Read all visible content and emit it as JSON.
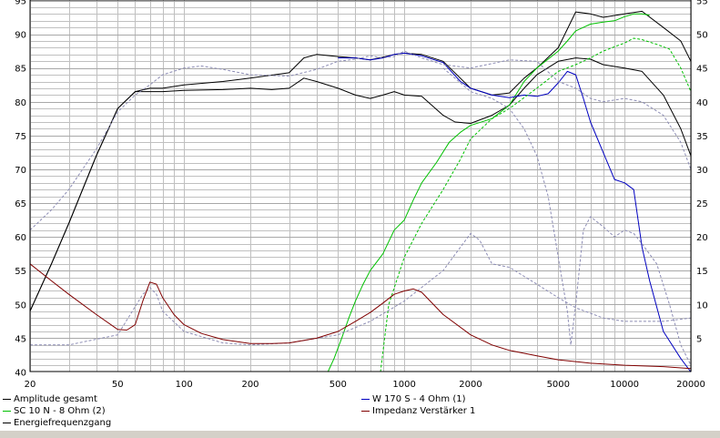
{
  "chart_data": {
    "type": "line",
    "x_scale": "log",
    "xlim": [
      20,
      20000
    ],
    "x_ticks": [
      20,
      50,
      100,
      200,
      500,
      1000,
      2000,
      5000,
      10000,
      20000
    ],
    "x_tick_labels": [
      "20",
      "50",
      "100",
      "200",
      "500",
      "1000",
      "2000",
      "5000",
      "10000",
      "20000"
    ],
    "ylim_left": [
      40,
      95
    ],
    "y_ticks_left": [
      40,
      45,
      50,
      55,
      60,
      65,
      70,
      75,
      80,
      85,
      90,
      95
    ],
    "ylim_right": [
      0,
      55
    ],
    "y_ticks_right": [
      5,
      10,
      15,
      20,
      25,
      30,
      35,
      40,
      45,
      50,
      55
    ],
    "grid": true,
    "legend_position": "bottom",
    "colors": {
      "amplitude": "#000000",
      "sc10n": "#00c000",
      "w170s": "#0000c0",
      "impedance": "#800000",
      "dashed": "#8c8cb4",
      "grid": "#c0c0c0"
    },
    "legend": [
      {
        "key": "amplitude",
        "label": "Amplitude gesamt",
        "color": "#000000"
      },
      {
        "key": "sc10n",
        "label": "SC 10 N - 8 Ohm (2)",
        "color": "#00c000"
      },
      {
        "key": "energy",
        "label": "Energiefrequenzgang",
        "color": "#000000"
      },
      {
        "key": "w170s",
        "label": "W 170 S - 4 Ohm (1)",
        "color": "#0000c0"
      },
      {
        "key": "impedance",
        "label": "Impedanz Verstärker 1",
        "color": "#800000"
      }
    ],
    "series": [
      {
        "key": "amplitude_upper",
        "legend_key": "amplitude",
        "color": "#000000",
        "style": "solid",
        "x": [
          20,
          25,
          30,
          40,
          50,
          60,
          70,
          80,
          100,
          150,
          200,
          300,
          350,
          400,
          500,
          600,
          700,
          800,
          900,
          1000,
          1200,
          1500,
          2000,
          2500,
          3000,
          3500,
          4000,
          5000,
          6000,
          7000,
          8000,
          10000,
          12000,
          15000,
          18000,
          20000
        ],
        "y": [
          49,
          56,
          62,
          72,
          79,
          81.5,
          82,
          82,
          82.5,
          83,
          83.5,
          84.3,
          86.5,
          87,
          86.7,
          86.5,
          86.2,
          86.6,
          87,
          87.2,
          87,
          86,
          82,
          81,
          81.3,
          83.5,
          85,
          88,
          93.3,
          93,
          92.5,
          93,
          93.4,
          91,
          89,
          86
        ]
      },
      {
        "key": "amplitude_lower",
        "legend_key": "amplitude",
        "color": "#000000",
        "style": "solid",
        "x": [
          20,
          25,
          30,
          40,
          50,
          60,
          70,
          80,
          100,
          150,
          200,
          250,
          300,
          350,
          400,
          500,
          600,
          700,
          800,
          900,
          1000,
          1200,
          1500,
          1700,
          2000,
          2500,
          3000,
          3500,
          4000,
          5000,
          6000,
          7000,
          8000,
          10000,
          12000,
          15000,
          18000,
          20000
        ],
        "y": [
          49,
          56,
          62,
          72,
          79,
          81.5,
          81.5,
          81.5,
          81.7,
          81.8,
          82,
          81.8,
          82,
          83.5,
          83,
          82,
          81,
          80.5,
          81,
          81.5,
          81,
          80.8,
          78,
          77,
          76.8,
          78,
          79.5,
          82,
          84,
          86,
          86.5,
          86.3,
          85.5,
          85,
          84.5,
          81,
          76,
          72
        ]
      },
      {
        "key": "sc10n",
        "legend_key": "sc10n",
        "color": "#00c000",
        "style": "solid",
        "x": [
          450,
          480,
          520,
          560,
          600,
          650,
          700,
          800,
          900,
          1000,
          1100,
          1200,
          1400,
          1600,
          1800,
          2000,
          2500,
          3000,
          3500,
          4000,
          5000,
          5500,
          6000,
          7000,
          8000,
          9000,
          10000,
          11000,
          12000,
          13000
        ],
        "y": [
          40,
          42,
          45,
          48,
          50.5,
          53,
          55,
          57.5,
          61,
          62.5,
          65.5,
          68,
          71,
          74,
          75.5,
          76.5,
          77.5,
          79.5,
          83,
          85,
          87.5,
          89,
          90.5,
          91.5,
          91.8,
          92,
          92.6,
          93,
          93,
          92.8
        ]
      },
      {
        "key": "w170s",
        "legend_key": "w170s",
        "color": "#0000c0",
        "style": "solid",
        "x": [
          500,
          600,
          700,
          800,
          900,
          1000,
          1200,
          1500,
          1800,
          2000,
          2500,
          3000,
          3500,
          4000,
          4500,
          5000,
          5500,
          6000,
          6500,
          7000,
          8000,
          9000,
          10000,
          11000,
          12000,
          13000,
          15000,
          18000,
          20000
        ],
        "y": [
          86.5,
          86.5,
          86.2,
          86.5,
          87,
          87.2,
          86.8,
          85.8,
          83,
          82,
          81,
          80.6,
          81,
          80.8,
          81.2,
          82.8,
          84.5,
          84,
          80.5,
          77,
          72.5,
          68.5,
          68,
          67,
          58.5,
          53.5,
          46,
          42,
          40
        ]
      },
      {
        "key": "sc10n_dashed",
        "legend_key": "sc10n",
        "color": "#00c000",
        "style": "dashed",
        "x": [
          780,
          850,
          1000,
          1200,
          1500,
          1800,
          2000,
          2500,
          3000,
          4000,
          5000,
          6000,
          7000,
          8000,
          10000,
          11000,
          12000,
          14000,
          16000,
          18000,
          20000
        ],
        "y": [
          40,
          50,
          57,
          62,
          67,
          71.5,
          74.5,
          77.5,
          79,
          82,
          84.5,
          85.5,
          86.5,
          87.5,
          88.7,
          89.4,
          89.2,
          88.5,
          87.8,
          85,
          81.5
        ]
      },
      {
        "key": "energy_dashed",
        "legend_key": "energy",
        "color": "#8c8cb4",
        "style": "dashed",
        "x": [
          20,
          25,
          30,
          40,
          50,
          60,
          70,
          80,
          100,
          120,
          150,
          200,
          300,
          400,
          500,
          600,
          700,
          800,
          900,
          1000,
          1200,
          1500,
          2000,
          3000,
          4000,
          5000,
          6000,
          7000,
          8000,
          10000,
          12000,
          15000,
          18000,
          20000
        ],
        "y": [
          61,
          64,
          67,
          73,
          78.5,
          81,
          82.5,
          84,
          85,
          85.3,
          84.8,
          84,
          83.8,
          84.8,
          86,
          86.3,
          86.8,
          86.5,
          86.7,
          87.5,
          86.5,
          85.5,
          85,
          86.2,
          86,
          83,
          82,
          80.5,
          80,
          80.5,
          80,
          78,
          74,
          70
        ]
      },
      {
        "key": "w170s_dashed",
        "legend_key": "w170s",
        "color": "#8c8cb4",
        "style": "dashed",
        "x": [
          1500,
          2000,
          2500,
          3000,
          3500,
          4000,
          4500,
          5000,
          5500,
          5700,
          6000,
          6500,
          7000,
          8000,
          9000,
          10000,
          11000,
          12000,
          14000,
          16000,
          18000,
          20000
        ],
        "y": [
          85,
          81.5,
          80.5,
          79,
          76,
          72,
          66,
          57,
          49,
          44,
          50,
          61,
          63,
          61.5,
          60,
          61,
          60.5,
          59,
          56,
          50,
          44,
          41
        ]
      },
      {
        "key": "impedance_gray_dashed",
        "legend_key": "impedance",
        "color": "#8c8cb4",
        "style": "dashed",
        "x": [
          20,
          30,
          50,
          65,
          70,
          75,
          80,
          100,
          150,
          200,
          300,
          500,
          700,
          1000,
          1500,
          2000,
          2200,
          2500,
          3000,
          4000,
          5000,
          6000,
          8000,
          10000,
          15000,
          20000
        ],
        "y": [
          44,
          44,
          45.5,
          51.5,
          52.5,
          51.5,
          49,
          46,
          44.3,
          44,
          44.3,
          45.5,
          47.5,
          50.5,
          55,
          60.5,
          59.5,
          56,
          55.5,
          53,
          51,
          49.5,
          48,
          47.5,
          47.5,
          48
        ]
      },
      {
        "key": "impedance",
        "legend_key": "impedance",
        "color": "#800000",
        "style": "solid",
        "x": [
          20,
          25,
          30,
          40,
          50,
          55,
          60,
          65,
          70,
          75,
          80,
          90,
          100,
          120,
          150,
          200,
          250,
          300,
          400,
          500,
          600,
          700,
          800,
          900,
          1000,
          1100,
          1200,
          1500,
          2000,
          2500,
          3000,
          4000,
          5000,
          7000,
          10000,
          15000,
          20000
        ],
        "y": [
          56,
          53.5,
          51.5,
          48.5,
          46.3,
          46.2,
          47,
          50.5,
          53.3,
          53,
          51,
          48.5,
          47,
          45.7,
          44.8,
          44.2,
          44.2,
          44.3,
          45,
          46,
          47.5,
          48.8,
          50.2,
          51.5,
          52,
          52.3,
          51.8,
          48.5,
          45.5,
          44,
          43.2,
          42.4,
          41.8,
          41.3,
          41,
          40.8,
          40.5
        ]
      }
    ]
  }
}
